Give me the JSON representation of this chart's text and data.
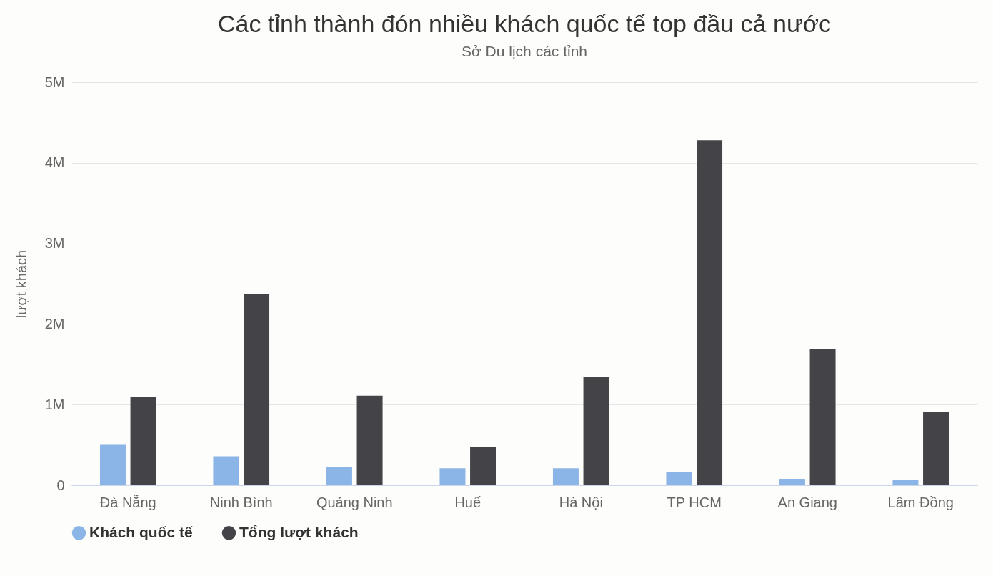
{
  "chart_data": {
    "type": "bar",
    "title": "Các tỉnh thành đón nhiều khách quốc tế top đầu cả nước",
    "subtitle": "Sở Du lịch các tỉnh",
    "ylabel": "lượt khách",
    "categories": [
      "Đà Nẵng",
      "Ninh Bình",
      "Quảng Ninh",
      "Huế",
      "Hà Nội",
      "TP HCM",
      "An Giang",
      "Lâm Đồng"
    ],
    "series": [
      {
        "name": "Khách quốc tế",
        "color": "#8bb4e7",
        "values": [
          510000,
          360000,
          230000,
          210000,
          210000,
          160000,
          80000,
          70000
        ]
      },
      {
        "name": "Tổng lượt khách",
        "color": "#434348",
        "values": [
          1100000,
          2370000,
          1110000,
          470000,
          1340000,
          4280000,
          1690000,
          910000
        ]
      }
    ],
    "ylim": [
      0,
      5000000
    ],
    "yticks": [
      {
        "value": 0,
        "label": "0"
      },
      {
        "value": 1000000,
        "label": "1M"
      },
      {
        "value": 2000000,
        "label": "2M"
      },
      {
        "value": 3000000,
        "label": "3M"
      },
      {
        "value": 4000000,
        "label": "4M"
      },
      {
        "value": 5000000,
        "label": "5M"
      }
    ],
    "grid": "y",
    "legend": "bottom"
  }
}
